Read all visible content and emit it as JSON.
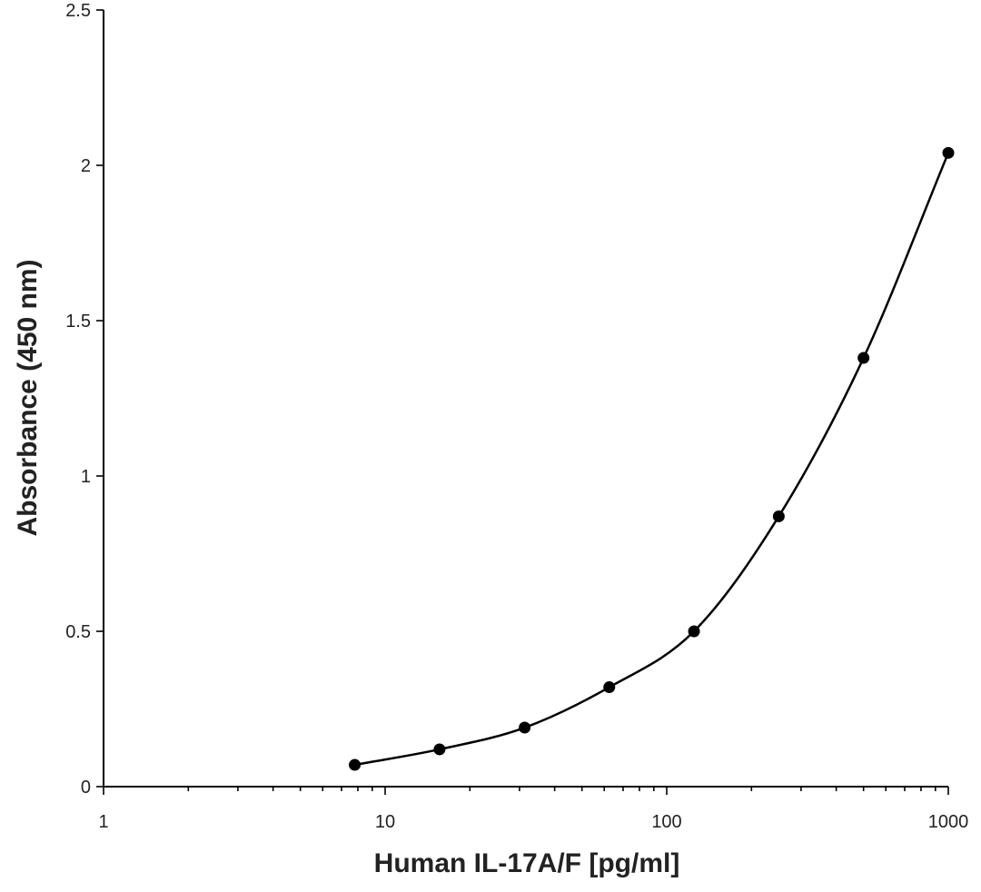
{
  "chart_data": {
    "type": "scatter",
    "title": "",
    "xlabel": "Human IL-17A/F [pg/ml]",
    "ylabel": "Absorbance (450 nm)",
    "x_scale": "log",
    "xlim": [
      1,
      1000
    ],
    "ylim": [
      0,
      2.5
    ],
    "x_ticks": [
      1,
      10,
      100,
      1000
    ],
    "x_tick_labels": [
      "1",
      "10",
      "100",
      "1000"
    ],
    "y_ticks": [
      0,
      0.5,
      1,
      1.5,
      2,
      2.5
    ],
    "y_tick_labels": [
      "0",
      "0.5",
      "1",
      "1.5",
      "2",
      "2.5"
    ],
    "grid": false,
    "legend": "none",
    "series": [
      {
        "marker": "circle",
        "line": "smooth",
        "color": "#000000",
        "x": [
          7.8,
          15.6,
          31.3,
          62.5,
          125,
          250,
          500,
          1000
        ],
        "y": [
          0.07,
          0.12,
          0.19,
          0.32,
          0.5,
          0.87,
          1.38,
          2.04
        ]
      }
    ]
  }
}
